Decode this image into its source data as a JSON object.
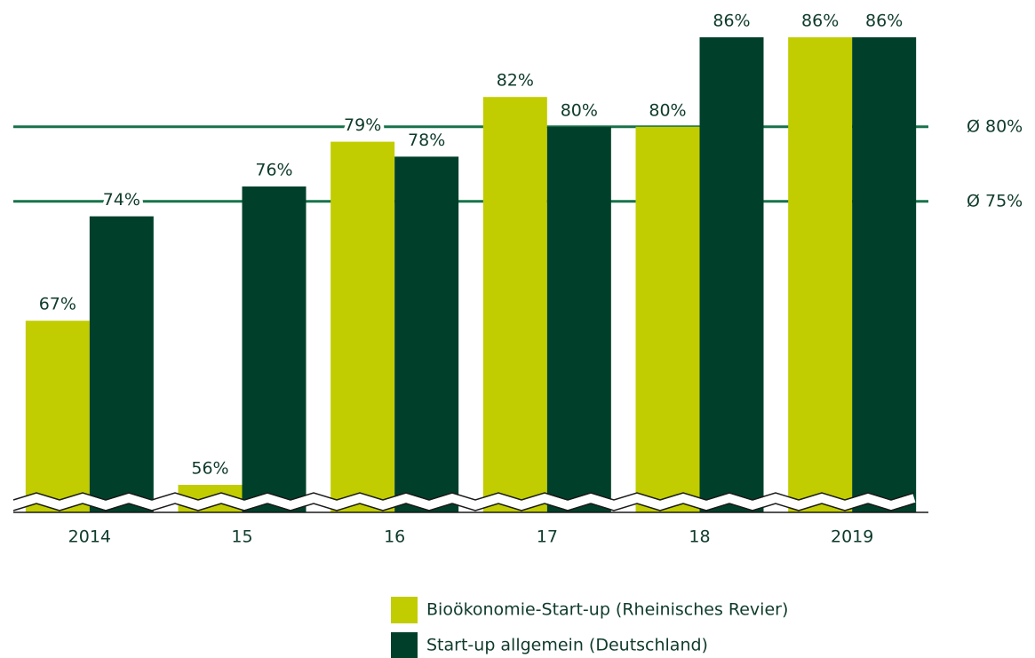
{
  "chart_data": {
    "type": "bar",
    "categories": [
      "2014",
      "15",
      "16",
      "17",
      "18",
      "2019"
    ],
    "series": [
      {
        "name": "Bioökonomie-Start-up (Rheinisches Revier)",
        "color": "#c1cd00",
        "values": [
          67,
          56,
          79,
          82,
          80,
          86
        ],
        "value_labels": [
          "67%",
          "56%",
          "79%",
          "82%",
          "80%",
          "86%"
        ]
      },
      {
        "name": "Start-up allgemein (Deutschland)",
        "color": "#00402a",
        "values": [
          74,
          76,
          78,
          80,
          86,
          86
        ],
        "value_labels": [
          "74%",
          "76%",
          "78%",
          "80%",
          "86%",
          "86%"
        ]
      }
    ],
    "reference_lines": [
      {
        "value": 80,
        "label": "Ø 80%",
        "label_color": "#1a1a1a"
      },
      {
        "value": 75,
        "label": "Ø 75%",
        "label_color": "#9fb800"
      }
    ],
    "ylim": [
      54,
      88
    ],
    "legend": "bottom"
  }
}
